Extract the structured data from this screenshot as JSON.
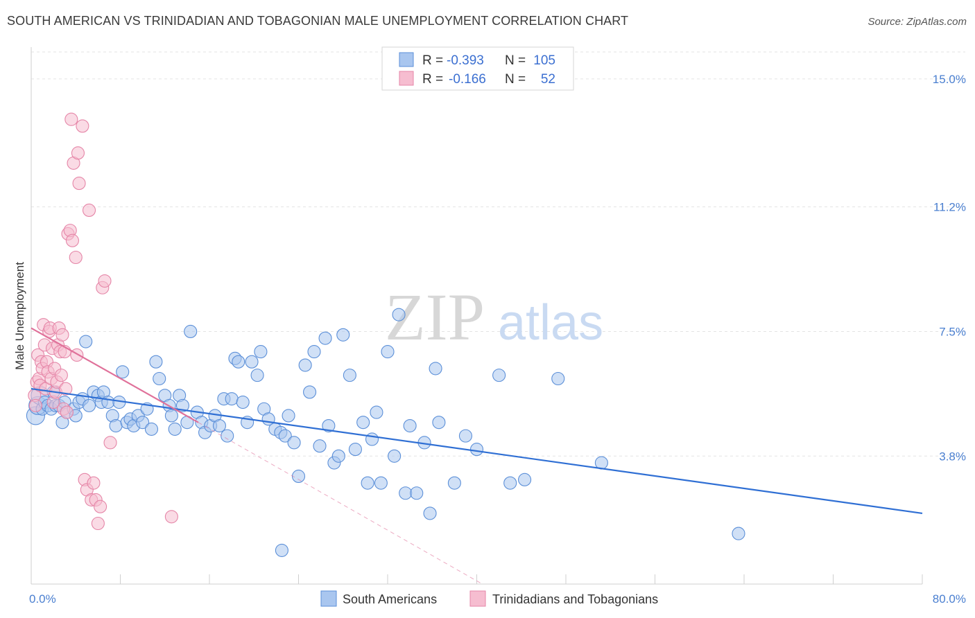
{
  "title": "SOUTH AMERICAN VS TRINIDADIAN AND TOBAGONIAN MALE UNEMPLOYMENT CORRELATION CHART",
  "source": "Source: ZipAtlas.com",
  "watermark": {
    "zip": "ZIP",
    "atlas": "atlas"
  },
  "legend": {
    "r_label": "R =",
    "n_label": "N =",
    "rows": [
      {
        "r": "-0.393",
        "n": "105"
      },
      {
        "r": "-0.166",
        "n": "52"
      }
    ]
  },
  "chart_data": {
    "type": "scatter",
    "title": "SOUTH AMERICAN VS TRINIDADIAN AND TOBAGONIAN MALE UNEMPLOYMENT CORRELATION CHART",
    "xlabel": "",
    "ylabel": "Male Unemployment",
    "xlim": [
      0,
      80
    ],
    "ylim": [
      0,
      15.8
    ],
    "x_tick_labels": [
      "0.0%",
      "80.0%"
    ],
    "y_ticks": [
      3.8,
      7.5,
      11.2,
      15.0
    ],
    "y_tick_labels": [
      "3.8%",
      "7.5%",
      "11.2%",
      "15.0%"
    ],
    "grid": true,
    "legend_placement": "top-center",
    "colors": {
      "blue_fill": "#a9c6ef",
      "blue_stroke": "#5b8fd8",
      "blue_line": "#2f6fd4",
      "pink_fill": "#f6bdd0",
      "pink_stroke": "#e585a7",
      "pink_line": "#e0719a"
    },
    "series": [
      {
        "name": "South Americans",
        "color": "#a9c6ef",
        "trend": {
          "x": [
            0,
            80
          ],
          "y": [
            5.8,
            2.1
          ]
        },
        "points": [
          [
            0.4,
            5.0
          ],
          [
            0.6,
            5.3
          ],
          [
            0.8,
            5.6
          ],
          [
            1.0,
            5.2
          ],
          [
            1.2,
            5.4
          ],
          [
            1.5,
            5.3
          ],
          [
            1.8,
            5.2
          ],
          [
            2.0,
            5.7
          ],
          [
            2.2,
            5.3
          ],
          [
            2.5,
            5.3
          ],
          [
            2.8,
            4.8
          ],
          [
            3.0,
            5.4
          ],
          [
            3.2,
            5.1
          ],
          [
            3.8,
            5.2
          ],
          [
            4.0,
            5.0
          ],
          [
            4.3,
            5.4
          ],
          [
            4.6,
            5.5
          ],
          [
            4.9,
            7.2
          ],
          [
            5.2,
            5.3
          ],
          [
            5.6,
            5.7
          ],
          [
            6.0,
            5.6
          ],
          [
            6.3,
            5.4
          ],
          [
            6.5,
            5.7
          ],
          [
            6.9,
            5.4
          ],
          [
            7.3,
            5.0
          ],
          [
            7.6,
            4.7
          ],
          [
            7.9,
            5.4
          ],
          [
            8.2,
            6.3
          ],
          [
            8.6,
            4.8
          ],
          [
            8.9,
            4.9
          ],
          [
            9.2,
            4.7
          ],
          [
            9.6,
            5.0
          ],
          [
            10.0,
            4.8
          ],
          [
            10.4,
            5.2
          ],
          [
            10.8,
            4.6
          ],
          [
            11.2,
            6.6
          ],
          [
            11.5,
            6.1
          ],
          [
            12.0,
            5.6
          ],
          [
            12.4,
            5.3
          ],
          [
            12.6,
            5.0
          ],
          [
            12.9,
            4.6
          ],
          [
            13.3,
            5.6
          ],
          [
            13.6,
            5.3
          ],
          [
            14.0,
            4.8
          ],
          [
            14.3,
            7.5
          ],
          [
            14.9,
            5.1
          ],
          [
            15.3,
            4.8
          ],
          [
            15.6,
            4.5
          ],
          [
            16.1,
            4.7
          ],
          [
            16.5,
            5.0
          ],
          [
            16.9,
            4.7
          ],
          [
            17.3,
            5.5
          ],
          [
            17.6,
            4.4
          ],
          [
            18.0,
            5.5
          ],
          [
            18.3,
            6.7
          ],
          [
            18.6,
            6.6
          ],
          [
            19.0,
            5.4
          ],
          [
            19.4,
            4.8
          ],
          [
            19.8,
            6.6
          ],
          [
            20.3,
            6.2
          ],
          [
            20.6,
            6.9
          ],
          [
            20.9,
            5.2
          ],
          [
            21.3,
            4.9
          ],
          [
            21.9,
            4.6
          ],
          [
            22.4,
            4.5
          ],
          [
            22.8,
            4.4
          ],
          [
            23.1,
            5.0
          ],
          [
            23.6,
            4.2
          ],
          [
            24.0,
            3.2
          ],
          [
            24.6,
            6.5
          ],
          [
            25.0,
            5.7
          ],
          [
            25.4,
            6.9
          ],
          [
            25.9,
            4.1
          ],
          [
            26.4,
            7.3
          ],
          [
            26.7,
            4.7
          ],
          [
            27.2,
            3.6
          ],
          [
            27.6,
            3.8
          ],
          [
            28.0,
            7.4
          ],
          [
            28.6,
            6.2
          ],
          [
            29.1,
            4.0
          ],
          [
            29.8,
            4.8
          ],
          [
            30.2,
            3.0
          ],
          [
            30.6,
            4.3
          ],
          [
            31.0,
            5.1
          ],
          [
            31.4,
            3.0
          ],
          [
            32.0,
            6.9
          ],
          [
            32.6,
            3.8
          ],
          [
            33.0,
            8.0
          ],
          [
            33.6,
            2.7
          ],
          [
            34.0,
            4.7
          ],
          [
            34.6,
            2.7
          ],
          [
            35.3,
            4.2
          ],
          [
            35.8,
            2.1
          ],
          [
            36.3,
            6.4
          ],
          [
            36.6,
            4.8
          ],
          [
            38.0,
            3.0
          ],
          [
            39.0,
            4.4
          ],
          [
            40.0,
            4.0
          ],
          [
            42.0,
            6.2
          ],
          [
            43.0,
            3.0
          ],
          [
            44.3,
            3.1
          ],
          [
            47.3,
            6.1
          ],
          [
            51.2,
            3.6
          ],
          [
            63.5,
            1.5
          ],
          [
            22.5,
            1.0
          ]
        ]
      },
      {
        "name": "Trinidadians and Tobagonians",
        "color": "#f6bdd0",
        "trend": {
          "x": [
            0,
            15
          ],
          "y": [
            7.6,
            4.8
          ]
        },
        "trend_extension": {
          "x": [
            15,
            40.5
          ],
          "y": [
            4.8,
            0
          ]
        },
        "points": [
          [
            0.3,
            5.6
          ],
          [
            0.4,
            5.3
          ],
          [
            0.5,
            6.0
          ],
          [
            0.6,
            6.8
          ],
          [
            0.7,
            6.1
          ],
          [
            0.8,
            5.9
          ],
          [
            0.9,
            6.6
          ],
          [
            1.0,
            6.4
          ],
          [
            1.1,
            7.7
          ],
          [
            1.2,
            7.1
          ],
          [
            1.3,
            5.8
          ],
          [
            1.4,
            6.6
          ],
          [
            1.5,
            6.3
          ],
          [
            1.6,
            7.5
          ],
          [
            1.7,
            7.6
          ],
          [
            1.8,
            6.1
          ],
          [
            1.9,
            7.0
          ],
          [
            2.0,
            5.4
          ],
          [
            2.1,
            6.4
          ],
          [
            2.2,
            5.7
          ],
          [
            2.3,
            6.0
          ],
          [
            2.4,
            7.1
          ],
          [
            2.5,
            7.6
          ],
          [
            2.6,
            6.9
          ],
          [
            2.7,
            6.2
          ],
          [
            2.8,
            7.4
          ],
          [
            2.9,
            5.2
          ],
          [
            3.0,
            6.9
          ],
          [
            3.1,
            5.8
          ],
          [
            3.2,
            5.1
          ],
          [
            3.3,
            10.4
          ],
          [
            3.5,
            10.5
          ],
          [
            3.6,
            13.8
          ],
          [
            3.7,
            10.2
          ],
          [
            3.8,
            12.5
          ],
          [
            4.0,
            9.7
          ],
          [
            4.1,
            6.8
          ],
          [
            4.2,
            12.8
          ],
          [
            4.3,
            11.9
          ],
          [
            4.6,
            13.6
          ],
          [
            4.8,
            3.1
          ],
          [
            5.0,
            2.8
          ],
          [
            5.2,
            11.1
          ],
          [
            5.4,
            2.5
          ],
          [
            5.6,
            3.0
          ],
          [
            5.8,
            2.5
          ],
          [
            6.0,
            1.8
          ],
          [
            6.2,
            2.3
          ],
          [
            6.4,
            8.8
          ],
          [
            6.6,
            9.0
          ],
          [
            7.1,
            4.2
          ],
          [
            12.6,
            2.0
          ]
        ]
      }
    ]
  }
}
